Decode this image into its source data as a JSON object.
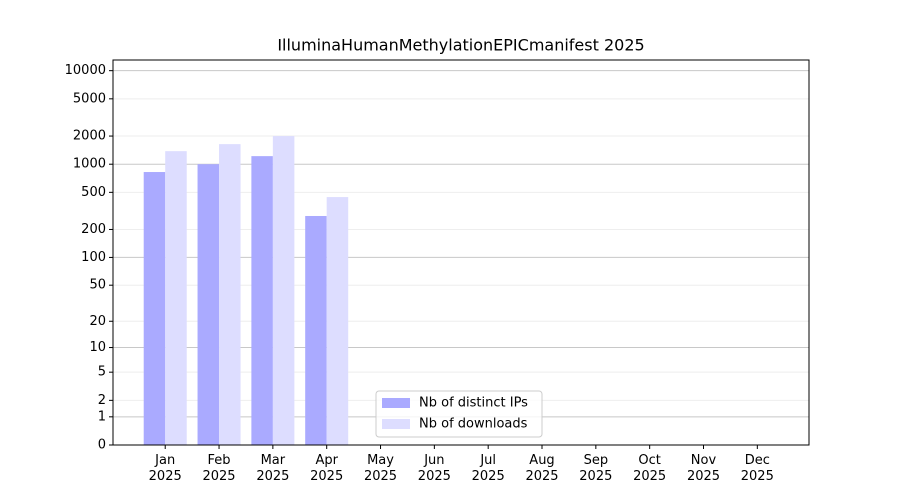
{
  "chart_data": {
    "type": "bar",
    "title": "IlluminaHumanMethylationEPICmanifest 2025",
    "categories": [
      "Jan\n2025",
      "Feb\n2025",
      "Mar\n2025",
      "Apr\n2025",
      "May\n2025",
      "Jun\n2025",
      "Jul\n2025",
      "Aug\n2025",
      "Sep\n2025",
      "Oct\n2025",
      "Nov\n2025",
      "Dec\n2025"
    ],
    "series": [
      {
        "name": "Nb of distinct IPs",
        "color": "#aaaaff",
        "values": [
          825,
          1000,
          1220,
          279,
          0,
          0,
          0,
          0,
          0,
          0,
          0,
          0
        ]
      },
      {
        "name": "Nb of downloads",
        "color": "#ddddff",
        "values": [
          1380,
          1640,
          2000,
          445,
          0,
          0,
          0,
          0,
          0,
          0,
          0,
          0
        ]
      }
    ],
    "yscale": "log1p",
    "ylim": [
      0,
      13000
    ],
    "yticks": [
      0,
      1,
      2,
      5,
      10,
      20,
      50,
      100,
      200,
      500,
      1000,
      2000,
      5000,
      10000
    ],
    "grid": true,
    "legend": "lower center"
  }
}
